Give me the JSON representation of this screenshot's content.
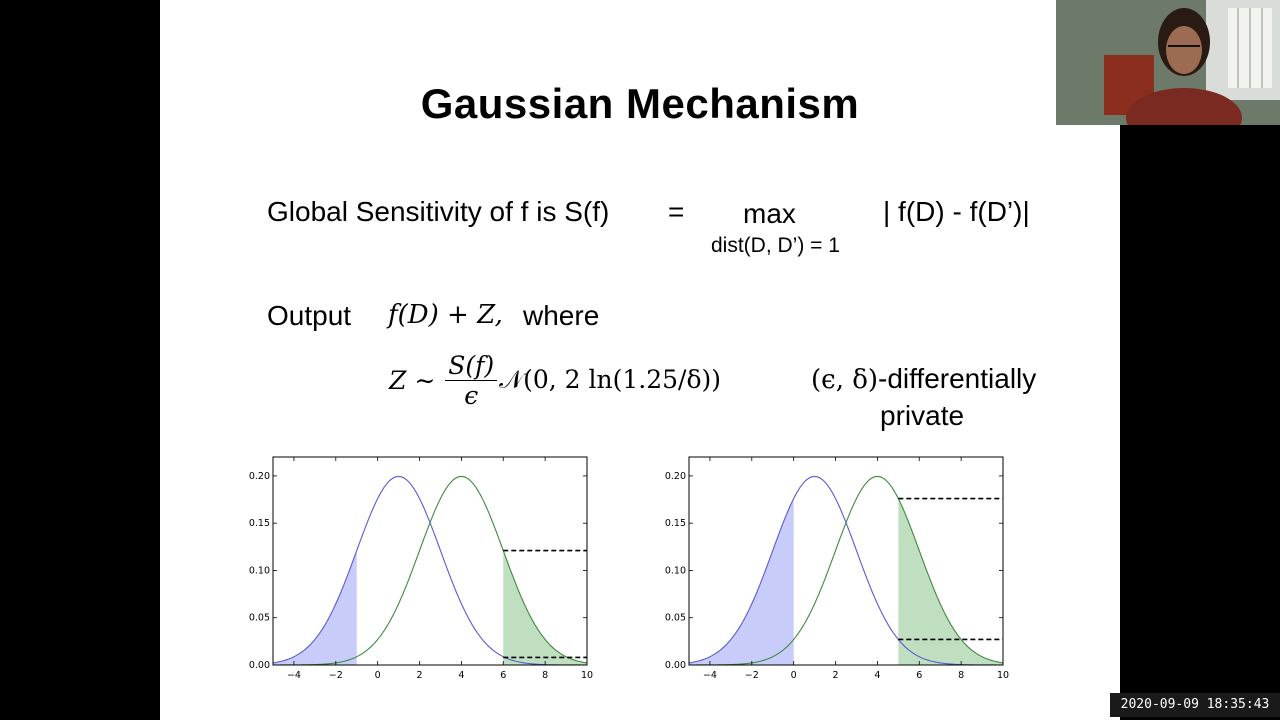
{
  "slide": {
    "title": "Gaussian Mechanism",
    "sensitivity": {
      "lhs": "Global Sensitivity of f is S(f)",
      "eq": "=",
      "op": "max",
      "sub": "dist(D, D’) = 1",
      "rhs": "| f(D) - f(D’)|"
    },
    "output": {
      "label": "Output",
      "expr": "f(D) + Z,",
      "suffix": "where"
    },
    "noise": {
      "lhs": "Z ∼",
      "num": "S(f)",
      "den": "ϵ",
      "dist": "𝒩(0, 2 ln(1.25/δ))"
    },
    "privacy": {
      "params": "(ϵ, δ)",
      "line1": "-differentially",
      "line2": "private"
    }
  },
  "chart_data": [
    {
      "type": "area",
      "series": [
        {
          "mean": 1,
          "sd": 2,
          "color": "#5a5ad8",
          "fill": "#9aa3f5",
          "shaded_region": [
            -5,
            -1
          ]
        },
        {
          "mean": 4,
          "sd": 2,
          "color": "#3e8a3e",
          "fill": "#8cc48c",
          "shaded_region": [
            6,
            10
          ]
        }
      ],
      "xlim": [
        -5,
        10
      ],
      "ylim": [
        0,
        0.22
      ],
      "xticks": [
        -4,
        -2,
        0,
        2,
        4,
        6,
        8,
        10
      ],
      "yticks": [
        0.0,
        0.05,
        0.1,
        0.15,
        0.2
      ],
      "xtick_labels": [
        "−4",
        "−2",
        "0",
        "2",
        "4",
        "6",
        "8",
        "10"
      ],
      "ytick_labels": [
        "0.00",
        "0.05",
        "0.10",
        "0.15",
        "0.20"
      ],
      "dashed_lines": [
        {
          "y": 0.121,
          "x_from": 6,
          "x_to": 10
        },
        {
          "y": 0.008,
          "x_from": 6,
          "x_to": 10
        }
      ]
    },
    {
      "type": "area",
      "series": [
        {
          "mean": 1,
          "sd": 2,
          "color": "#5a5ad8",
          "fill": "#9aa3f5",
          "shaded_region": [
            -5,
            0
          ]
        },
        {
          "mean": 4,
          "sd": 2,
          "color": "#3e8a3e",
          "fill": "#8cc48c",
          "shaded_region": [
            5,
            10
          ]
        }
      ],
      "xlim": [
        -5,
        10
      ],
      "ylim": [
        0,
        0.22
      ],
      "xticks": [
        -4,
        -2,
        0,
        2,
        4,
        6,
        8,
        10
      ],
      "yticks": [
        0.0,
        0.05,
        0.1,
        0.15,
        0.2
      ],
      "xtick_labels": [
        "−4",
        "−2",
        "0",
        "2",
        "4",
        "6",
        "8",
        "10"
      ],
      "ytick_labels": [
        "0.00",
        "0.05",
        "0.10",
        "0.15",
        "0.20"
      ],
      "dashed_lines": [
        {
          "y": 0.176,
          "x_from": 5,
          "x_to": 10
        },
        {
          "y": 0.027,
          "x_from": 5,
          "x_to": 10
        }
      ]
    }
  ],
  "overlay": {
    "timestamp": "2020-09-09 18:35:43",
    "webcam_icon": "person-webcam"
  }
}
